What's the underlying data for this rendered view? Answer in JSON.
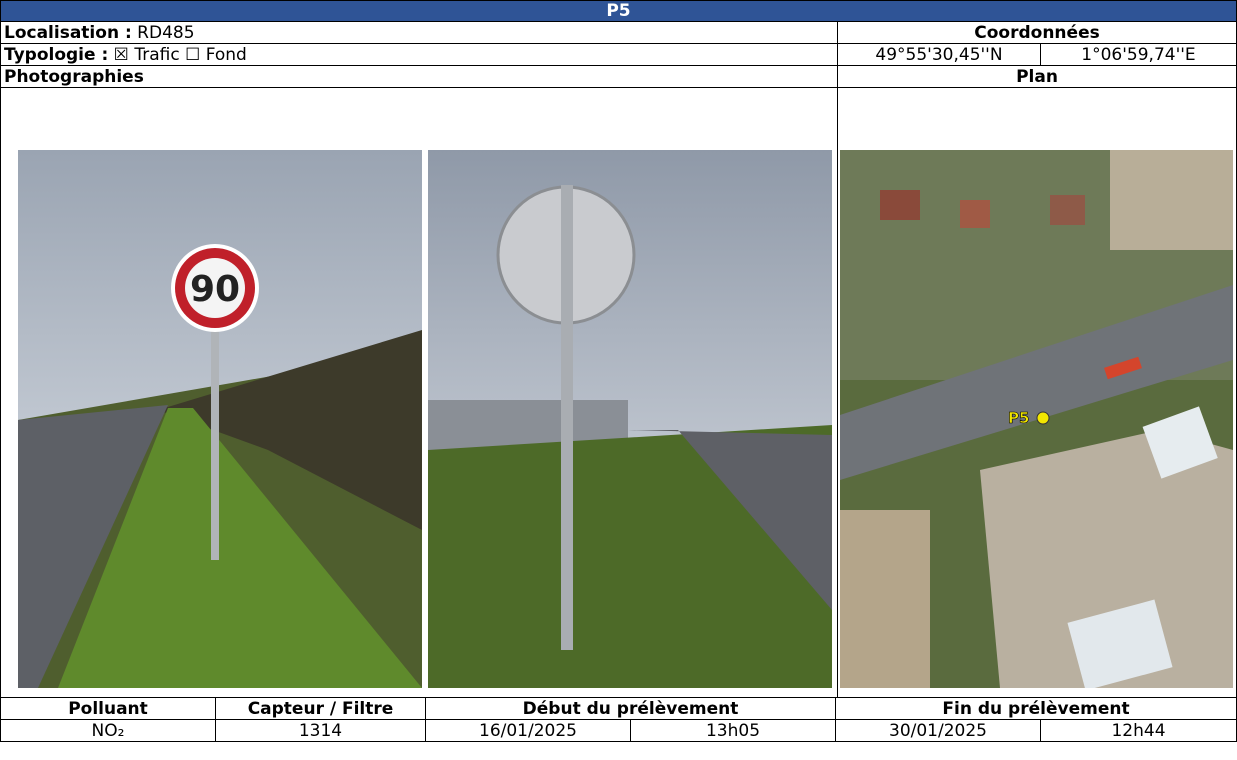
{
  "header": {
    "title": "P5"
  },
  "location": {
    "label": "Localisation :",
    "value": "RD485"
  },
  "typology": {
    "label": "Typologie :",
    "value": "☒ Trafic ☐ Fond"
  },
  "coordinates": {
    "title": "Coordonnées",
    "latitude": "49°55'30,45''N",
    "longitude": "1°06'59,74''E"
  },
  "sections": {
    "photos": "Photographies",
    "plan": "Plan"
  },
  "map": {
    "label": "P5"
  },
  "table": {
    "headers": [
      "Polluant",
      "Capteur / Filtre",
      "Début du prélèvement",
      "Fin du prélèvement"
    ],
    "row": [
      "NO₂",
      "1314",
      "16/01/2025",
      "13h05",
      "30/01/2025",
      "12h44"
    ]
  }
}
